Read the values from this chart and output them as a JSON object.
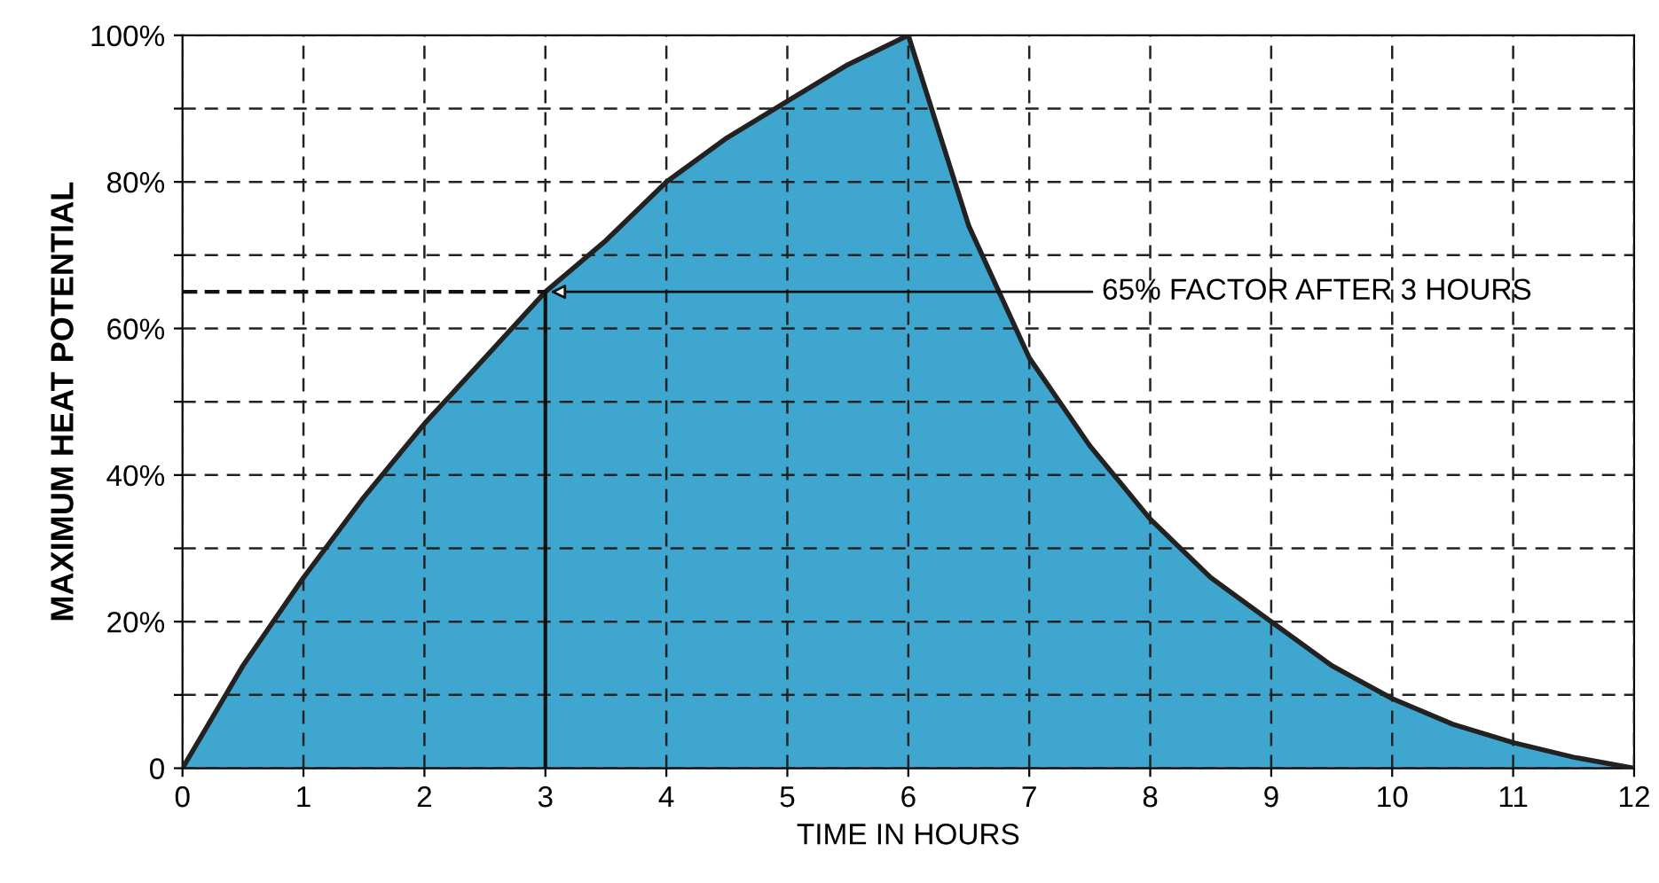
{
  "chart_data": {
    "type": "area",
    "xlabel": "TIME IN HOURS",
    "ylabel": "MAXIMUM HEAT POTENTIAL",
    "x": [
      0,
      0.5,
      1,
      1.5,
      2,
      2.5,
      3,
      3.5,
      4,
      4.5,
      5,
      5.5,
      6,
      6.5,
      7,
      7.5,
      8,
      8.5,
      9,
      9.5,
      10,
      10.5,
      11,
      11.5,
      12
    ],
    "series": [
      {
        "color": "#3fa6cf",
        "values": [
          0,
          14,
          26,
          37,
          47,
          56,
          65,
          72,
          80,
          86,
          91,
          96,
          100,
          74,
          56,
          44,
          34,
          26,
          20,
          14,
          9.5,
          6,
          3.5,
          1.5,
          0
        ]
      }
    ],
    "xlim": [
      0,
      12
    ],
    "ylim": [
      0,
      100
    ],
    "xticks": [
      0,
      1,
      2,
      3,
      4,
      5,
      6,
      7,
      8,
      9,
      10,
      11,
      12
    ],
    "yticks": [
      {
        "value": 0,
        "label": "0"
      },
      {
        "value": 10,
        "label": null
      },
      {
        "value": 20,
        "label": "20%"
      },
      {
        "value": 30,
        "label": null
      },
      {
        "value": 40,
        "label": "40%"
      },
      {
        "value": 50,
        "label": null
      },
      {
        "value": 60,
        "label": "60%"
      },
      {
        "value": 70,
        "label": null
      },
      {
        "value": 80,
        "label": "80%"
      },
      {
        "value": 90,
        "label": null
      },
      {
        "value": 100,
        "label": "100%"
      }
    ],
    "grid": true,
    "line_style": "dashed",
    "ref_lines": [
      {
        "axis": "y",
        "value": 65,
        "line_style": "dashed",
        "color": "#111111"
      },
      {
        "axis": "x",
        "value": 3,
        "line_style": "solid",
        "color": "#111111"
      }
    ],
    "annotations": [
      {
        "text": "65% FACTOR AFTER 3 HOURS",
        "x": 3,
        "y": 65
      }
    ]
  }
}
